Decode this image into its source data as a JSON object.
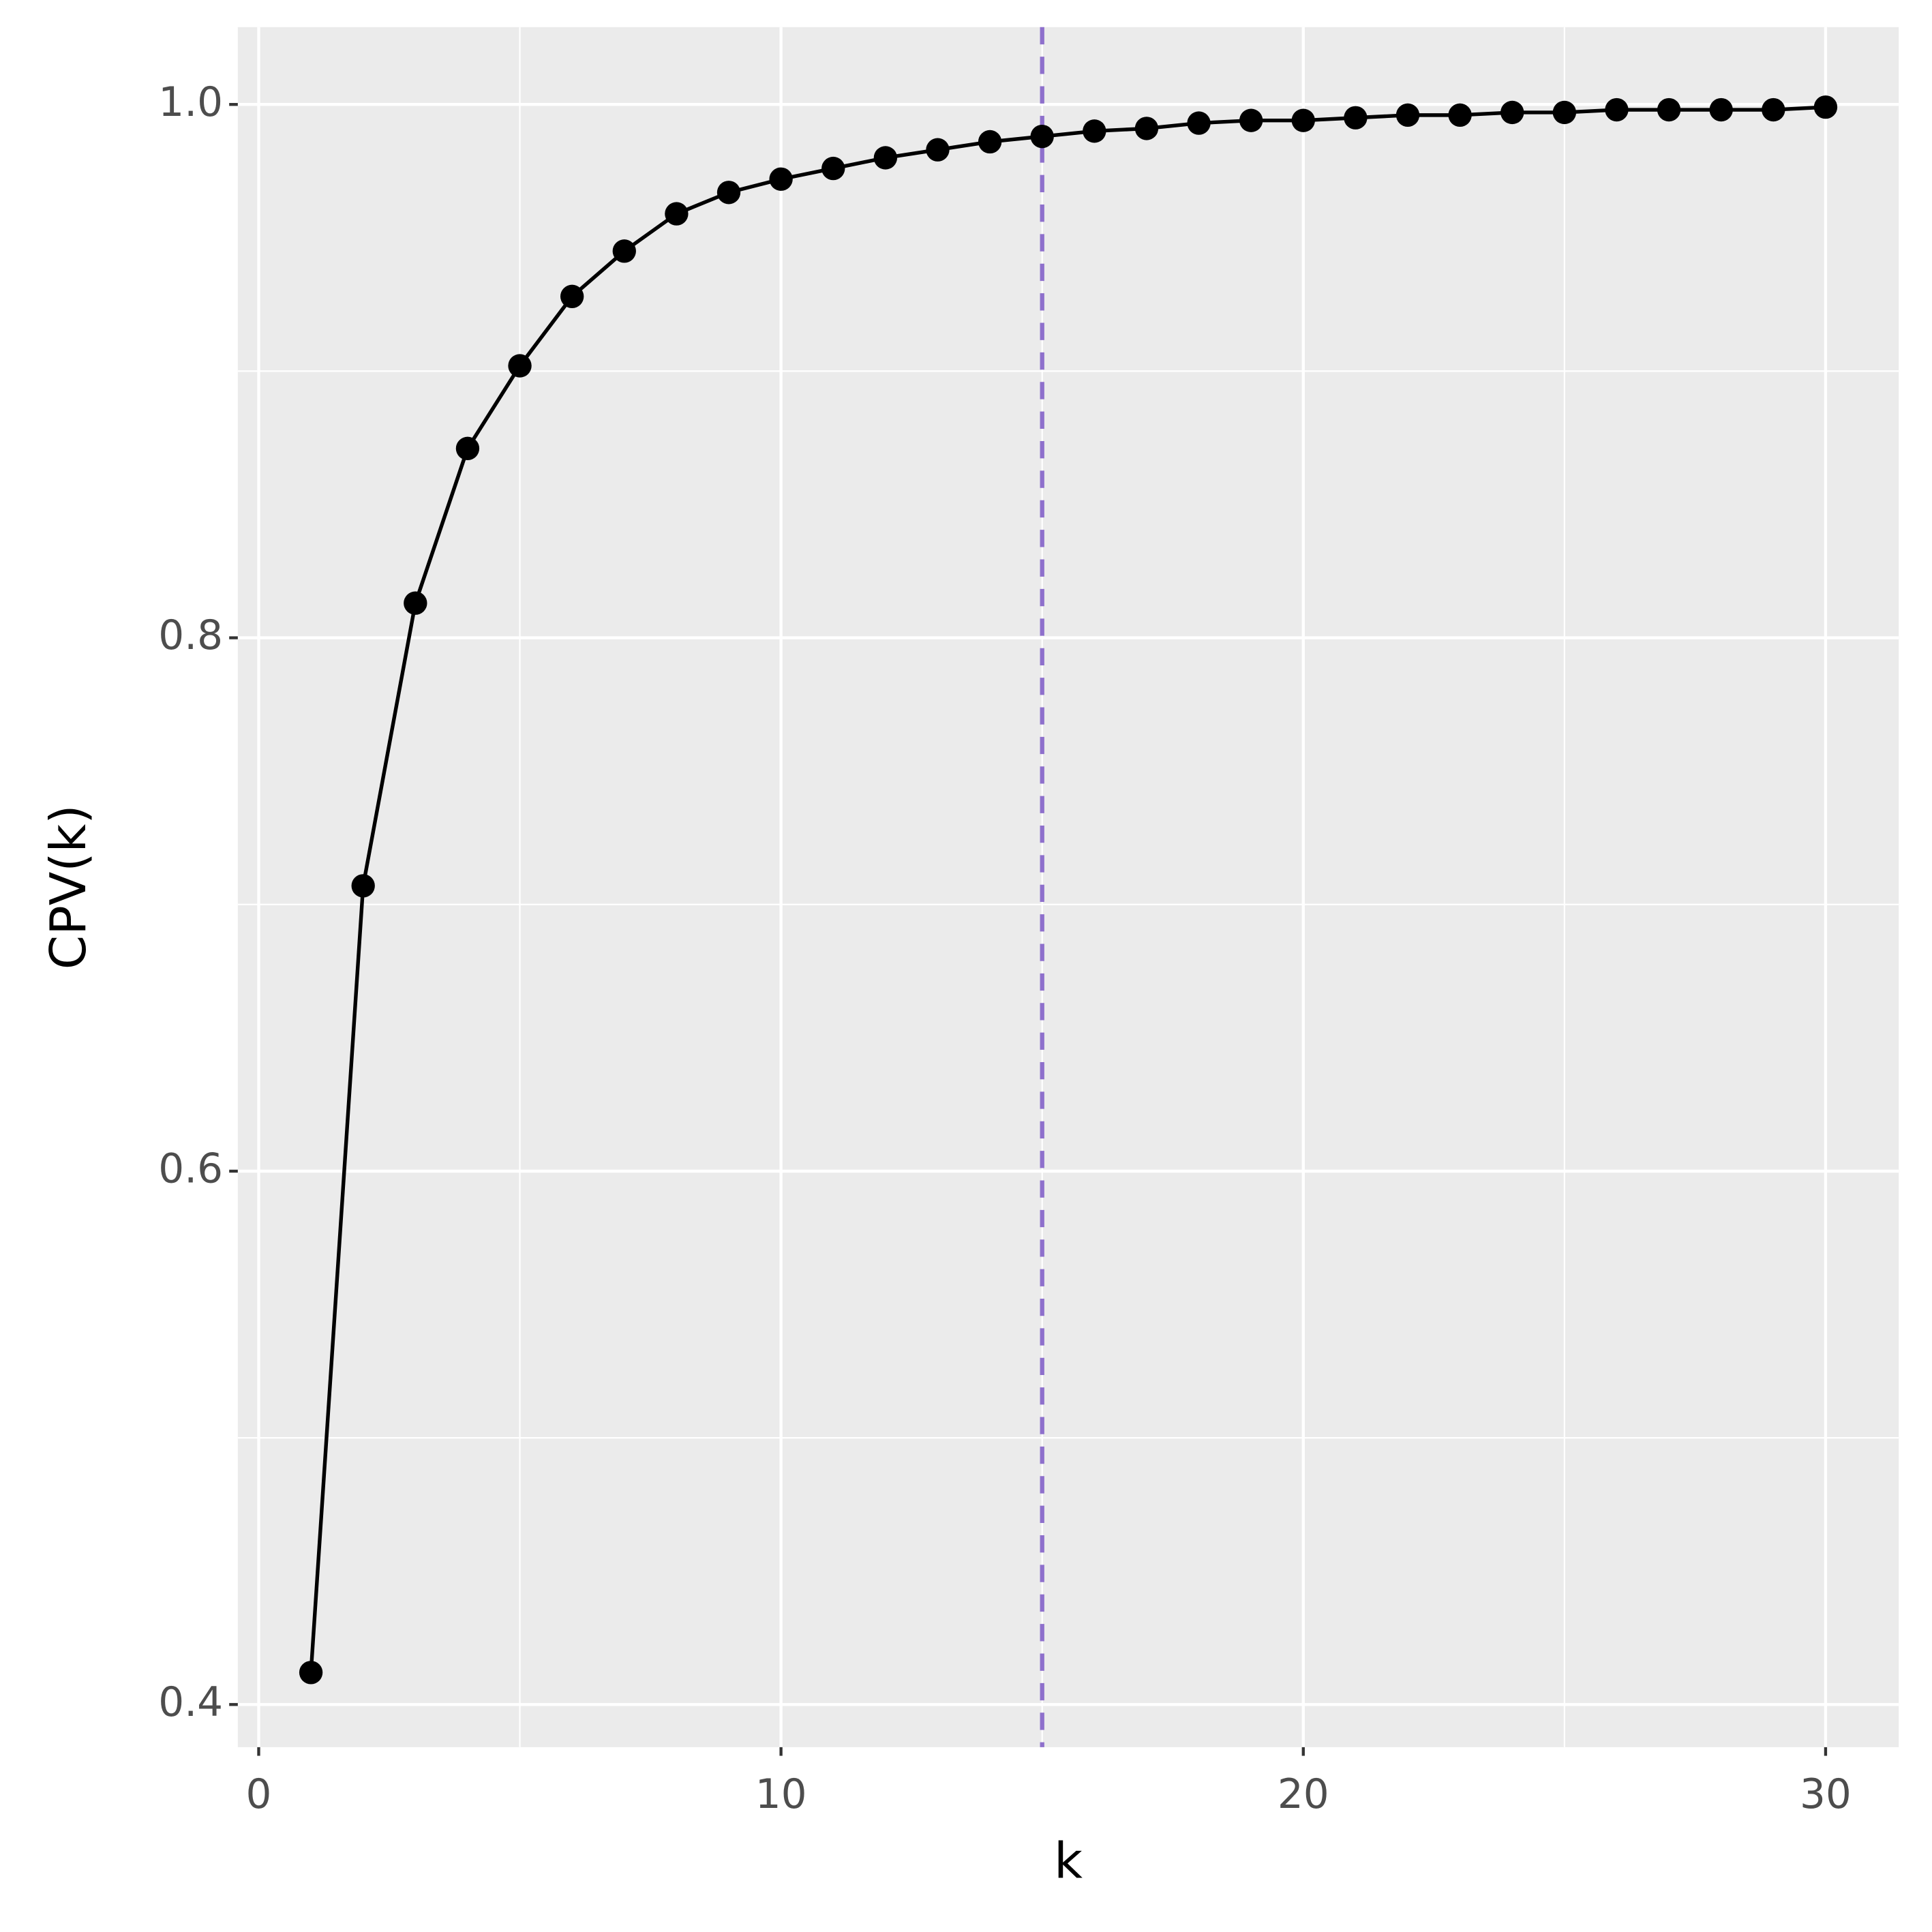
{
  "chart_data": {
    "type": "line",
    "x_label": "k",
    "y_label": "CPV(k)",
    "x": [
      1,
      2,
      3,
      4,
      5,
      6,
      7,
      8,
      9,
      10,
      11,
      12,
      13,
      14,
      15,
      16,
      17,
      18,
      19,
      20,
      21,
      22,
      23,
      24,
      25,
      26,
      27,
      28,
      29,
      30
    ],
    "values": [
      0.412,
      0.707,
      0.813,
      0.871,
      0.902,
      0.928,
      0.945,
      0.959,
      0.967,
      0.972,
      0.976,
      0.98,
      0.983,
      0.986,
      0.988,
      0.99,
      0.991,
      0.993,
      0.994,
      0.994,
      0.995,
      0.996,
      0.996,
      0.997,
      0.997,
      0.998,
      0.998,
      0.998,
      0.998,
      0.999
    ],
    "color": "#000000",
    "markers": true,
    "xlim": [
      -0.4,
      31.4
    ],
    "ylim": [
      0.384,
      1.029
    ],
    "xticks": [
      0,
      10,
      20,
      30
    ],
    "yticks": [
      0.4,
      0.6,
      0.8,
      {
        "value": 1,
        "label": "1.0"
      }
    ],
    "minor_xticks": [
      5,
      15,
      25
    ],
    "minor_yticks": [
      0.5,
      0.7,
      0.9
    ],
    "grid": true,
    "vline": {
      "x": 15,
      "color": "#8e70cc"
    }
  }
}
